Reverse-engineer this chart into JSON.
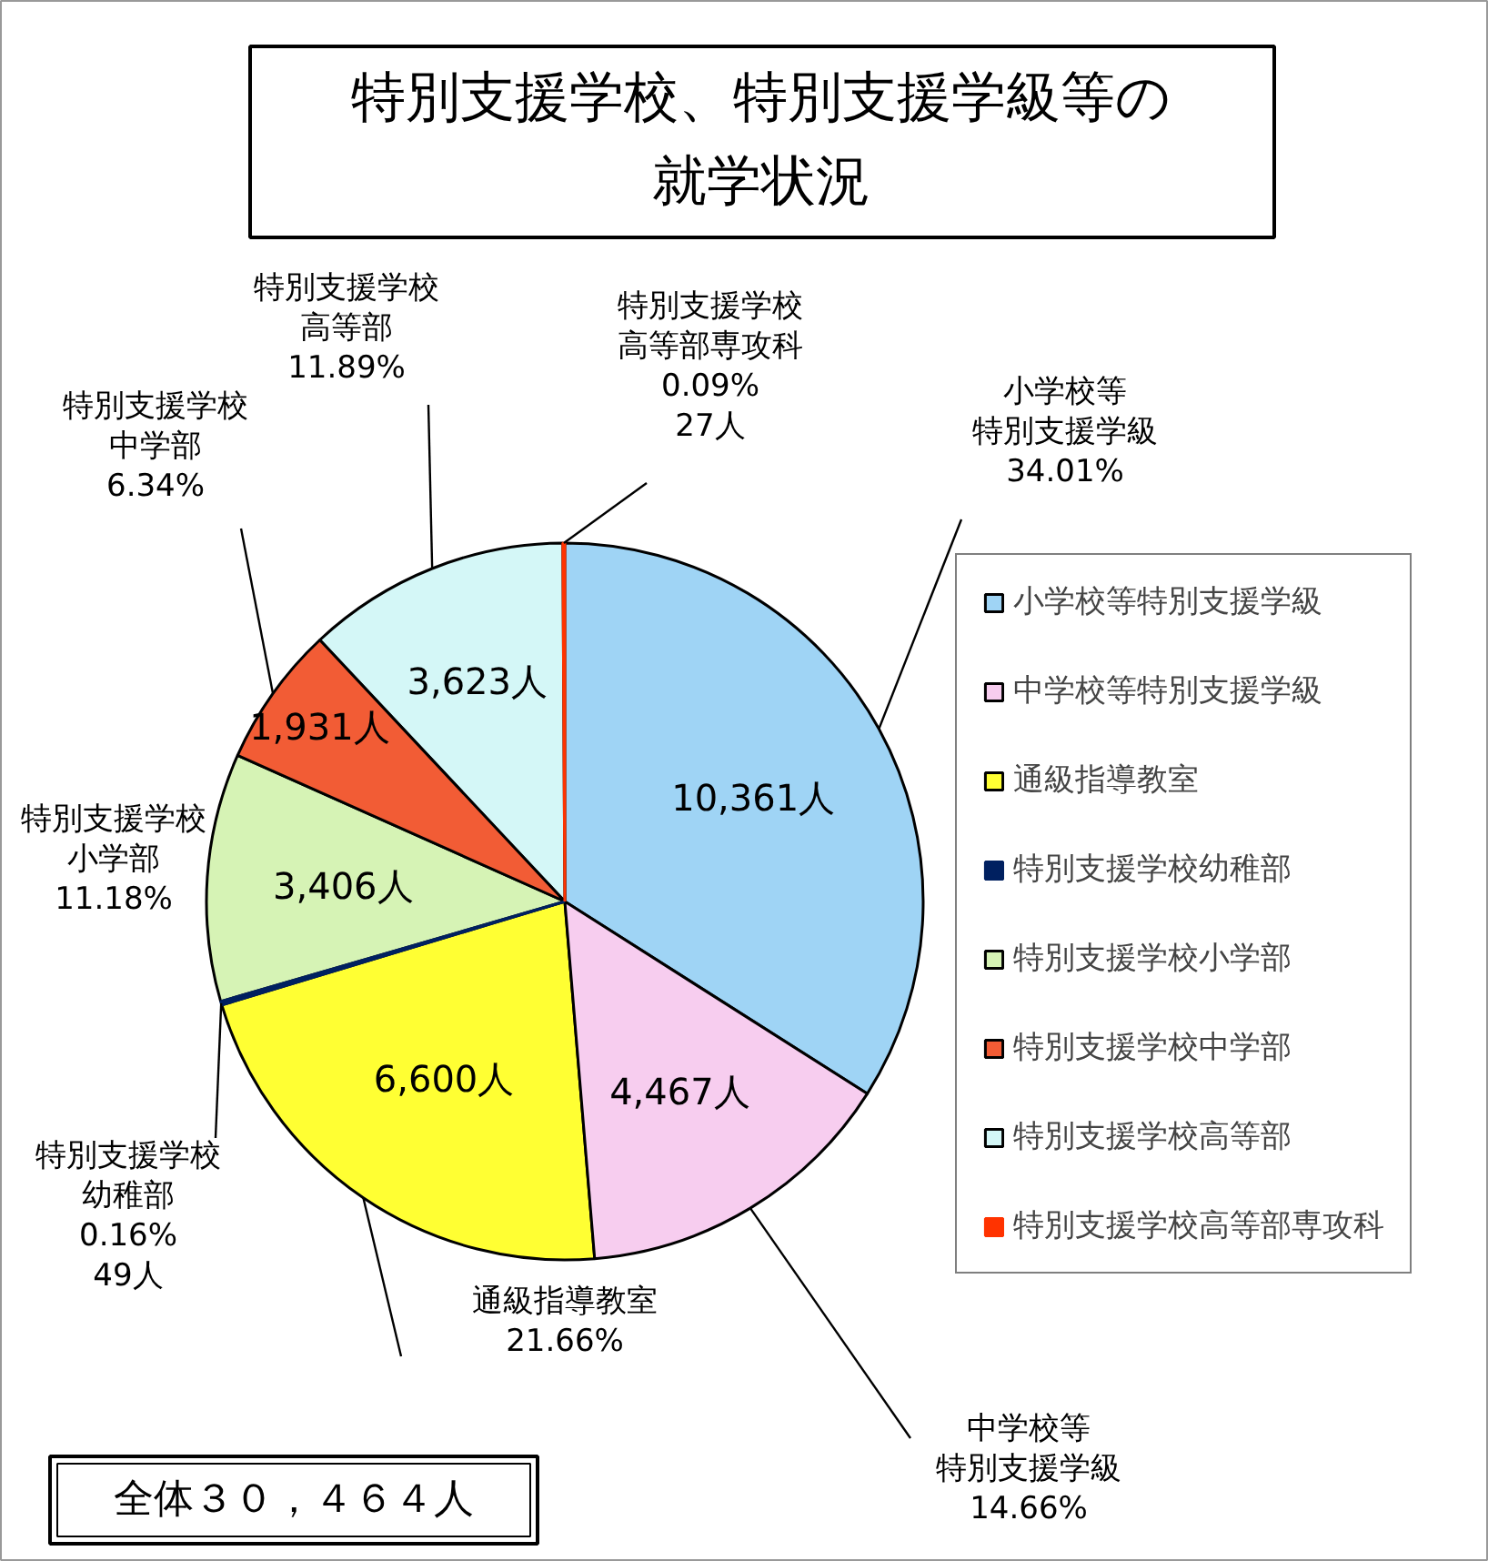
{
  "chart_data": {
    "type": "pie",
    "title": "特別支援学校、特別支援学級等の就学状況",
    "categories": [
      "小学校等特別支援学級",
      "中学校等特別支援学級",
      "通級指導教室",
      "特別支援学校幼稚部",
      "特別支援学校小学部",
      "特別支援学校中学部",
      "特別支援学校高等部",
      "特別支援学校高等部専攻科"
    ],
    "values": [
      10361,
      4467,
      6600,
      49,
      3406,
      1931,
      3623,
      27
    ],
    "colors": [
      "#9fd4f5",
      "#f7cdef",
      "#ffff33",
      "#002060",
      "#d6f3b5",
      "#f25c35",
      "#d4f7f7",
      "#ff3300"
    ],
    "value_labels": [
      "10,361人",
      "4,467人",
      "6,600人",
      null,
      "3,406人",
      "1,931人",
      "3,623人",
      null
    ],
    "annotations": [
      "小学校等特別支援学級34.01%",
      "中学校等特別支援学級14.66%",
      "通級指導教室21.66%",
      "特別支援学校幼稚部0.16%49人",
      "特別支援学校小学部11.18%",
      "特別支援学校中学部6.34%",
      "特別支援学校高等部11.89%",
      "特別支援学校高等部専攻科0.09%27人",
      "全体３０，４６４人"
    ],
    "legend": "right"
  }
}
